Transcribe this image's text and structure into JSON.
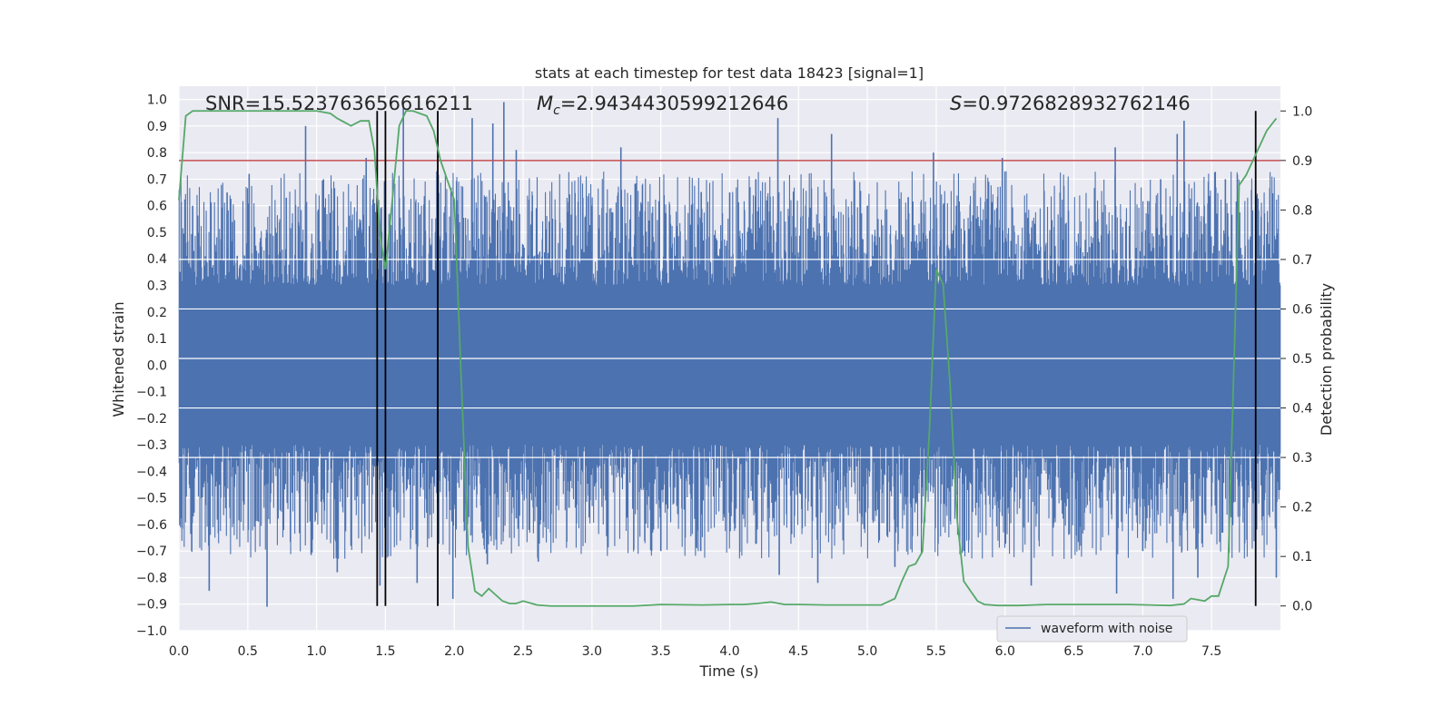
{
  "chart_data": {
    "type": "line",
    "title": "stats at each timestep for test data 18423 [signal=1]",
    "xlabel": "Time (s)",
    "ylabel_left": "Whitened strain",
    "ylabel_right": "Detection probability",
    "xlim": [
      0.0,
      8.0
    ],
    "ylim_left": [
      -1.0,
      1.05
    ],
    "ylim_right": [
      -0.05,
      1.05
    ],
    "x_ticks": [
      "0.0",
      "0.5",
      "1.0",
      "1.5",
      "2.0",
      "2.5",
      "3.0",
      "3.5",
      "4.0",
      "4.5",
      "5.0",
      "5.5",
      "6.0",
      "6.5",
      "7.0",
      "7.5"
    ],
    "x_tick_values": [
      0.0,
      0.5,
      1.0,
      1.5,
      2.0,
      2.5,
      3.0,
      3.5,
      4.0,
      4.5,
      5.0,
      5.5,
      6.0,
      6.5,
      7.0,
      7.5
    ],
    "y_left_ticks": [
      "1.0",
      "0.9",
      "0.8",
      "0.7",
      "0.6",
      "0.5",
      "0.4",
      "0.3",
      "0.2",
      "0.1",
      "0.0",
      "−0.1",
      "−0.2",
      "−0.3",
      "−0.4",
      "−0.5",
      "−0.6",
      "−0.7",
      "−0.8",
      "−0.9",
      "−1.0"
    ],
    "y_left_tick_values": [
      1.0,
      0.9,
      0.8,
      0.7,
      0.6,
      0.5,
      0.4,
      0.3,
      0.2,
      0.1,
      0.0,
      -0.1,
      -0.2,
      -0.3,
      -0.4,
      -0.5,
      -0.6,
      -0.7,
      -0.8,
      -0.9,
      -1.0
    ],
    "y_right_ticks": [
      "1.0",
      "0.9",
      "0.8",
      "0.7",
      "0.6",
      "0.5",
      "0.4",
      "0.3",
      "0.2",
      "0.1",
      "0.0"
    ],
    "y_right_tick_values": [
      1.0,
      0.9,
      0.8,
      0.7,
      0.6,
      0.5,
      0.4,
      0.3,
      0.2,
      0.1,
      0.0
    ],
    "annotations": {
      "snr": "SNR=15.523763656616211",
      "mc_symbol": "M",
      "mc_sub": "c",
      "mc_value": "=2.9434430599212646",
      "s_symbol": "S",
      "s_value": "=0.9726828932762146"
    },
    "legend": {
      "label": "waveform with noise",
      "position": "lower-right"
    },
    "threshold": {
      "value": 0.9,
      "axis": "right"
    },
    "vlines": [
      1.44,
      1.5,
      1.88,
      7.82
    ],
    "waveform": {
      "name": "waveform with noise",
      "core_amplitude": 0.3,
      "typical_peak": 0.55,
      "spikes": [
        {
          "t": 0.1,
          "v": 0.6
        },
        {
          "t": 0.22,
          "v": -0.85
        },
        {
          "t": 0.35,
          "v": 0.65
        },
        {
          "t": 0.51,
          "v": 0.72
        },
        {
          "t": 0.64,
          "v": -0.91
        },
        {
          "t": 0.78,
          "v": 0.63
        },
        {
          "t": 0.92,
          "v": 0.9
        },
        {
          "t": 1.05,
          "v": 0.7
        },
        {
          "t": 1.15,
          "v": -0.78
        },
        {
          "t": 1.36,
          "v": 0.78
        },
        {
          "t": 1.46,
          "v": -0.83
        },
        {
          "t": 1.63,
          "v": 0.97
        },
        {
          "t": 1.73,
          "v": -0.82
        },
        {
          "t": 1.99,
          "v": -0.88
        },
        {
          "t": 2.13,
          "v": 0.93
        },
        {
          "t": 2.24,
          "v": -0.75
        },
        {
          "t": 2.28,
          "v": 0.91
        },
        {
          "t": 2.36,
          "v": 0.99
        },
        {
          "t": 2.45,
          "v": 0.81
        },
        {
          "t": 2.61,
          "v": -0.74
        },
        {
          "t": 3.0,
          "v": 0.6
        },
        {
          "t": 3.21,
          "v": 0.82
        },
        {
          "t": 3.5,
          "v": -0.7
        },
        {
          "t": 3.79,
          "v": -0.7
        },
        {
          "t": 4.0,
          "v": 0.65
        },
        {
          "t": 4.19,
          "v": 0.7
        },
        {
          "t": 4.35,
          "v": 0.93
        },
        {
          "t": 4.36,
          "v": -0.79
        },
        {
          "t": 4.64,
          "v": -0.82
        },
        {
          "t": 4.74,
          "v": 0.87
        },
        {
          "t": 5.0,
          "v": 0.6
        },
        {
          "t": 5.2,
          "v": -0.76
        },
        {
          "t": 5.48,
          "v": 0.8
        },
        {
          "t": 5.7,
          "v": -0.7
        },
        {
          "t": 5.98,
          "v": 0.78
        },
        {
          "t": 6.19,
          "v": -0.83
        },
        {
          "t": 6.4,
          "v": 0.65
        },
        {
          "t": 6.55,
          "v": -0.68
        },
        {
          "t": 6.8,
          "v": 0.82
        },
        {
          "t": 6.81,
          "v": -0.86
        },
        {
          "t": 7.0,
          "v": -0.7
        },
        {
          "t": 7.13,
          "v": 0.7
        },
        {
          "t": 7.22,
          "v": -0.88
        },
        {
          "t": 7.25,
          "v": 0.87
        },
        {
          "t": 7.3,
          "v": 0.92
        },
        {
          "t": 7.4,
          "v": -0.8
        },
        {
          "t": 7.6,
          "v": 0.7
        },
        {
          "t": 7.97,
          "v": -0.8
        }
      ]
    },
    "probability": {
      "x": [
        0.0,
        0.05,
        0.1,
        0.2,
        0.3,
        0.4,
        0.5,
        0.6,
        0.7,
        0.8,
        0.9,
        1.0,
        1.1,
        1.15,
        1.25,
        1.32,
        1.38,
        1.42,
        1.46,
        1.5,
        1.55,
        1.6,
        1.65,
        1.7,
        1.8,
        1.85,
        1.9,
        1.95,
        2.0,
        2.05,
        2.1,
        2.15,
        2.2,
        2.25,
        2.35,
        2.4,
        2.45,
        2.5,
        2.6,
        2.7,
        2.8,
        3.0,
        3.3,
        3.5,
        3.8,
        4.0,
        4.1,
        4.2,
        4.3,
        4.4,
        4.5,
        4.7,
        4.9,
        5.1,
        5.2,
        5.25,
        5.3,
        5.35,
        5.4,
        5.45,
        5.5,
        5.55,
        5.6,
        5.65,
        5.7,
        5.75,
        5.8,
        5.85,
        5.95,
        6.1,
        6.3,
        6.6,
        6.9,
        7.05,
        7.2,
        7.3,
        7.35,
        7.45,
        7.5,
        7.55,
        7.62,
        7.7,
        7.75,
        7.8,
        7.85,
        7.9,
        7.97
      ],
      "y": [
        0.82,
        0.99,
        1.0,
        1.0,
        1.0,
        1.0,
        1.0,
        1.0,
        1.0,
        1.0,
        1.0,
        1.0,
        0.995,
        0.985,
        0.97,
        0.98,
        0.98,
        0.92,
        0.75,
        0.68,
        0.82,
        0.97,
        1.0,
        1.0,
        0.99,
        0.96,
        0.9,
        0.86,
        0.82,
        0.46,
        0.12,
        0.03,
        0.02,
        0.035,
        0.01,
        0.005,
        0.005,
        0.01,
        0.002,
        0.0,
        0.0,
        0.0,
        0.0,
        0.003,
        0.002,
        0.003,
        0.003,
        0.005,
        0.008,
        0.003,
        0.003,
        0.002,
        0.002,
        0.002,
        0.015,
        0.05,
        0.08,
        0.085,
        0.11,
        0.35,
        0.68,
        0.65,
        0.45,
        0.18,
        0.05,
        0.03,
        0.01,
        0.003,
        0.001,
        0.001,
        0.003,
        0.003,
        0.003,
        0.002,
        0.001,
        0.004,
        0.015,
        0.01,
        0.02,
        0.02,
        0.08,
        0.85,
        0.87,
        0.9,
        0.93,
        0.96,
        0.985
      ]
    }
  },
  "colors": {
    "axes_bg": "#eaeaf2",
    "grid": "#ffffff",
    "waveform": "#4c72b0",
    "probability": "#55a868",
    "threshold": "#c44e52",
    "vline": "#000000"
  }
}
